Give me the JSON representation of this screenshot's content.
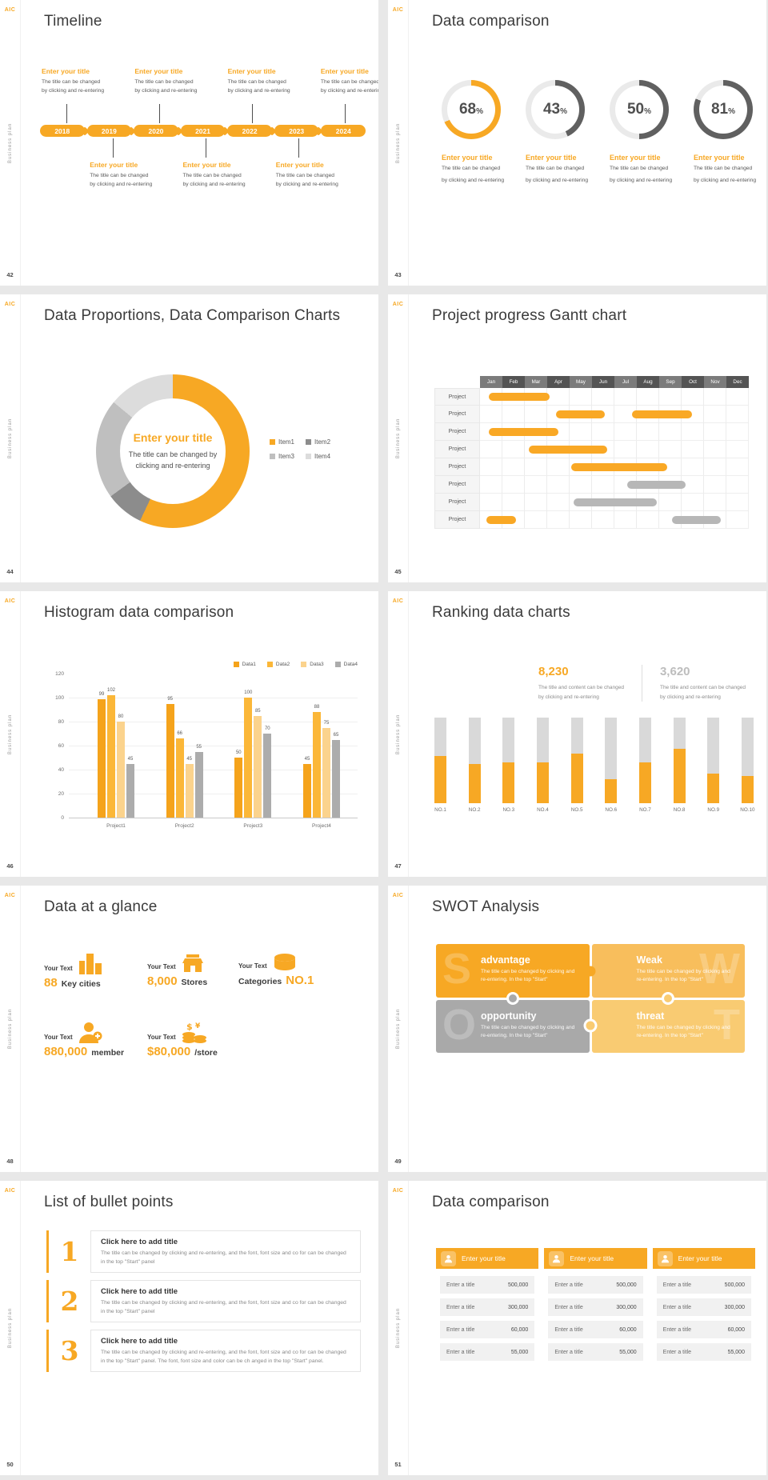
{
  "brand": {
    "logo_text": "AIC",
    "side_text": "Business plan",
    "accent": "#F7A824"
  },
  "slides": {
    "timeline": {
      "page": "42",
      "title": "Timeline",
      "entry_title": "Enter your title",
      "caption1": "The title can be changed",
      "caption2": "by clicking and re-entering",
      "years": [
        "2018",
        "2019",
        "2020",
        "2021",
        "2022",
        "2023",
        "2024"
      ],
      "top_positions": [
        0,
        2,
        4,
        6
      ],
      "bottom_positions": [
        1,
        3,
        5
      ]
    },
    "gauges": {
      "page": "43",
      "title": "Data comparison",
      "entry_title": "Enter your title",
      "caption1": "The title can be changed",
      "caption2": "by clicking and re-entering"
    },
    "proportions": {
      "page": "44",
      "title": "Data Proportions, Data Comparison Charts",
      "center_title": "Enter your title",
      "center_line1": "The title can be changed by",
      "center_line2": "clicking and re-entering"
    },
    "gantt": {
      "page": "45",
      "title": "Project progress Gantt chart"
    },
    "histogram": {
      "page": "46",
      "title": "Histogram data comparison"
    },
    "ranking": {
      "page": "47",
      "title": "Ranking data charts",
      "stat1_value": "8,230",
      "stat2_value": "3,620",
      "caption1": "The title and content can be changed",
      "caption2": "by clicking and re-entering"
    },
    "glance": {
      "page": "48",
      "title": "Data at a glance",
      "label": "Your Text",
      "stats": [
        {
          "icon": "city-buildings-icon",
          "value": "88",
          "unit": "Key cities"
        },
        {
          "icon": "store-icon",
          "value": "8,000",
          "unit": "Stores"
        },
        {
          "icon": "categories-icon",
          "value": "NO.1",
          "unit": "Categories",
          "unit_first": true
        },
        {
          "icon": "member-add-icon",
          "value": "880,000",
          "unit": "member"
        },
        {
          "icon": "coins-icon",
          "value": "$80,000",
          "unit": "/store"
        }
      ]
    },
    "swot": {
      "page": "49",
      "title": "SWOT Analysis",
      "quadrants": [
        {
          "letter": "S",
          "heading": "advantage",
          "color": "#F7A824",
          "side": "left",
          "text": "The title can be changed by clicking and re-entering. In the top \"Start\""
        },
        {
          "letter": "W",
          "heading": "Weak",
          "color": "#F8BE5C",
          "side": "right",
          "text": "The title can be changed by clicking and re-entering. In the top \"Start\""
        },
        {
          "letter": "O",
          "heading": "opportunity",
          "color": "#A9A9A9",
          "side": "left",
          "text": "The title can be changed by clicking and re-entering. In the top \"Start\""
        },
        {
          "letter": "T",
          "heading": "threat",
          "color": "#F9CB72",
          "side": "right",
          "text": "The title can be changed by clicking and re-entering. In the top \"Start\""
        }
      ]
    },
    "bullets": {
      "page": "50",
      "title": "List of bullet points",
      "items": [
        {
          "number": "1",
          "heading": "Click here to add title",
          "text": "The title can be changed by clicking and re-entering, and the font, font size and co for can be changed in the top \"Start\" panel"
        },
        {
          "number": "2",
          "heading": "Click here to add title",
          "text": "The title can be changed by clicking and re-entering, and the font, font size and co for can be changed in the top \"Start\" panel"
        },
        {
          "number": "3",
          "heading": "Click here to add title",
          "text": "The title can be changed by clicking and re-entering, and the font, font size and co for can be changed in the top \"Start\" panel. The font, font size and color can be ch anged in the top \"Start\" panel."
        }
      ]
    },
    "comparison": {
      "page": "51",
      "title": "Data comparison",
      "card_title": "Enter your title",
      "row_label": "Enter a title",
      "values": [
        "500,000",
        "300,000",
        "60,000",
        "55,000"
      ],
      "card_count": 3
    }
  },
  "chart_data": [
    {
      "type": "donut-gauge",
      "slide": "43",
      "values": [
        68,
        43,
        50,
        81
      ],
      "unit": "%",
      "accent_index": 0,
      "accent_color": "#F7A824",
      "ring_color": "#606060",
      "track_color": "#EAEAEA"
    },
    {
      "type": "pie",
      "slide": "44",
      "labels": [
        "Item1",
        "Item2",
        "Item3",
        "Item4"
      ],
      "values": [
        57,
        8,
        21,
        14
      ],
      "colors": [
        "#F7A824",
        "#8C8C8C",
        "#BFBFBF",
        "#DCDCDC"
      ],
      "note": "donut chart; segment sizes estimated from arc angles"
    },
    {
      "type": "gantt",
      "slide": "45",
      "row_label": "Project",
      "months": [
        "Jan",
        "Feb",
        "Mar",
        "Apr",
        "May",
        "Jun",
        "Jul",
        "Aug",
        "Sep",
        "Oct",
        "Nov",
        "Dec"
      ],
      "rows": [
        {
          "bars": [
            {
              "start": 0.4,
              "end": 3.1,
              "color": "orange"
            }
          ]
        },
        {
          "bars": [
            {
              "start": 3.4,
              "end": 5.6,
              "color": "orange"
            },
            {
              "start": 6.8,
              "end": 9.5,
              "color": "orange"
            }
          ]
        },
        {
          "bars": [
            {
              "start": 0.4,
              "end": 3.5,
              "color": "orange"
            }
          ]
        },
        {
          "bars": [
            {
              "start": 2.2,
              "end": 5.7,
              "color": "orange"
            }
          ]
        },
        {
          "bars": [
            {
              "start": 4.1,
              "end": 8.4,
              "color": "orange"
            }
          ]
        },
        {
          "bars": [
            {
              "start": 6.6,
              "end": 9.2,
              "color": "gray"
            }
          ]
        },
        {
          "bars": [
            {
              "start": 4.2,
              "end": 7.9,
              "color": "gray"
            }
          ]
        },
        {
          "bars": [
            {
              "start": 0.3,
              "end": 1.6,
              "color": "orange"
            },
            {
              "start": 8.6,
              "end": 10.8,
              "color": "gray"
            }
          ]
        }
      ]
    },
    {
      "type": "bar",
      "slide": "46",
      "categories": [
        "Project1",
        "Project2",
        "Project3",
        "Project4"
      ],
      "series": [
        {
          "name": "Data1",
          "values": [
            99,
            95,
            50,
            45
          ]
        },
        {
          "name": "Data2",
          "values": [
            102,
            66,
            100,
            88
          ]
        },
        {
          "name": "Data3",
          "values": [
            80,
            45,
            85,
            75
          ]
        },
        {
          "name": "Data4",
          "values": [
            45,
            55,
            70,
            65
          ]
        }
      ],
      "colors": [
        "#F5A31B",
        "#FBB738",
        "#FBD38D",
        "#ACACAC"
      ],
      "ylim": [
        0,
        120
      ],
      "yticks": [
        0,
        20,
        40,
        60,
        80,
        100,
        120
      ],
      "legend_position": "top-right",
      "grid": true
    },
    {
      "type": "bar",
      "slide": "47",
      "categories": [
        "NO.1",
        "NO.2",
        "NO.3",
        "NO.4",
        "NO.5",
        "NO.6",
        "NO.7",
        "NO.8",
        "NO.9",
        "NO.10"
      ],
      "values": [
        55,
        46,
        48,
        48,
        58,
        28,
        48,
        64,
        35,
        32
      ],
      "ylim": [
        0,
        100
      ],
      "note": "orange fill percentage of full-height gray track; values estimated from pixels"
    }
  ]
}
